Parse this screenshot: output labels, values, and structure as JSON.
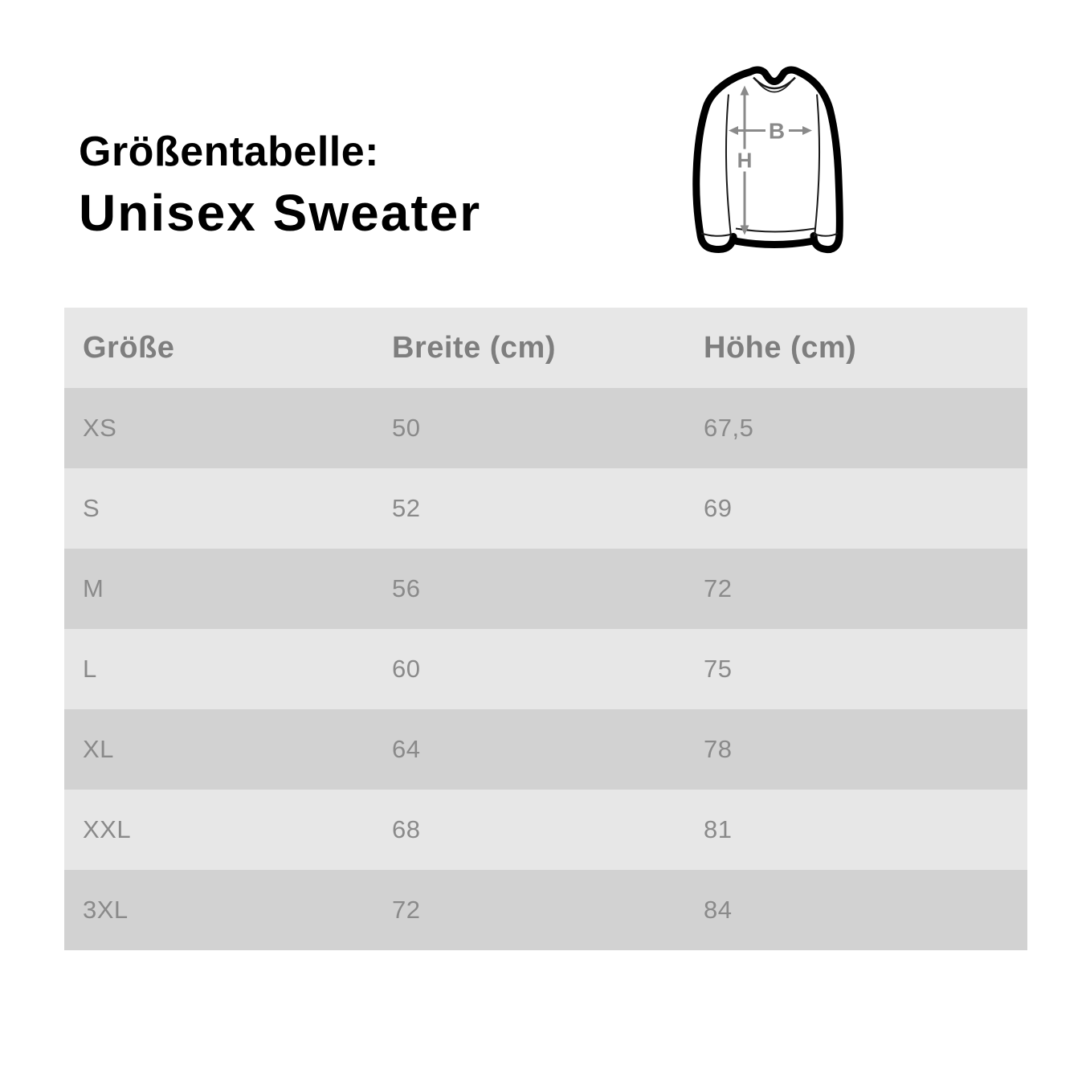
{
  "title": {
    "line1": "Größentabelle:",
    "line2": "Unisex Sweater"
  },
  "diagram": {
    "name": "unisex-sweater-outline",
    "width_label": "B",
    "height_label": "H",
    "outline_color": "#000000",
    "seam_color": "#1a1a1a",
    "arrow_color": "#8a8a8a"
  },
  "table": {
    "headers": [
      "Größe",
      "Breite (cm)",
      "Höhe (cm)"
    ],
    "rows": [
      {
        "size": "XS",
        "breite": "50",
        "hoehe": "67,5"
      },
      {
        "size": "S",
        "breite": "52",
        "hoehe": "69"
      },
      {
        "size": "M",
        "breite": "56",
        "hoehe": "72"
      },
      {
        "size": "L",
        "breite": "60",
        "hoehe": "75"
      },
      {
        "size": "XL",
        "breite": "64",
        "hoehe": "78"
      },
      {
        "size": "XXL",
        "breite": "68",
        "hoehe": "81"
      },
      {
        "size": "3XL",
        "breite": "72",
        "hoehe": "84"
      }
    ],
    "colors": {
      "header_bg": "#e7e7e7",
      "row_light": "#e7e7e7",
      "row_dark": "#d2d2d2",
      "header_text": "#7e7e7e",
      "cell_text": "#8a8a8a"
    }
  },
  "chart_data": {
    "type": "table",
    "title": "Größentabelle: Unisex Sweater",
    "columns": [
      "Größe",
      "Breite (cm)",
      "Höhe (cm)"
    ],
    "rows": [
      [
        "XS",
        50,
        67.5
      ],
      [
        "S",
        52,
        69
      ],
      [
        "M",
        56,
        72
      ],
      [
        "L",
        60,
        75
      ],
      [
        "XL",
        64,
        78
      ],
      [
        "XXL",
        68,
        81
      ],
      [
        "3XL",
        72,
        84
      ]
    ],
    "annotations": [
      "B = Breite (width) arrow on sweater diagram",
      "H = Höhe (height) arrow on sweater diagram"
    ]
  }
}
